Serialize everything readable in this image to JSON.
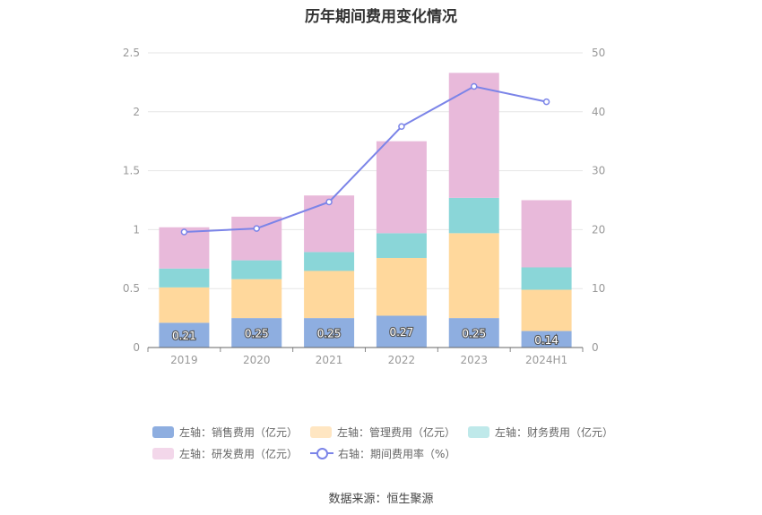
{
  "chart_data": {
    "type": "bar",
    "title": "历年期间费用变化情况",
    "categories": [
      "2019",
      "2020",
      "2021",
      "2022",
      "2023",
      "2024H1"
    ],
    "stacked": true,
    "series": [
      {
        "name": "左轴：销售费用（亿元）",
        "color": "#8eaee0",
        "values": [
          0.21,
          0.25,
          0.25,
          0.27,
          0.25,
          0.14
        ],
        "labels": [
          "0.21",
          "0.25",
          "0.25",
          "0.27",
          "0.25",
          "0.14"
        ]
      },
      {
        "name": "左轴：管理费用（亿元）",
        "color": "#ffd89c",
        "values": [
          0.3,
          0.33,
          0.4,
          0.49,
          0.72,
          0.35
        ]
      },
      {
        "name": "左轴：财务费用（亿元）",
        "color": "#8ad6d8",
        "values": [
          0.16,
          0.16,
          0.16,
          0.21,
          0.3,
          0.19
        ]
      },
      {
        "name": "左轴：研发费用（亿元）",
        "color": "#e8b9da",
        "values": [
          0.35,
          0.37,
          0.48,
          0.78,
          1.06,
          0.57
        ]
      }
    ],
    "line_series": {
      "name": "右轴：期间费用率（%）",
      "color": "#7b84e8",
      "values": [
        19.6,
        20.2,
        24.7,
        37.5,
        44.3,
        41.7
      ]
    },
    "ylim_left": [
      0,
      2.5
    ],
    "yticks_left": [
      "0",
      "0.5",
      "1",
      "1.5",
      "2",
      "2.5"
    ],
    "ylim_right": [
      0,
      50
    ],
    "yticks_right": [
      "0",
      "10",
      "20",
      "30",
      "40",
      "50"
    ],
    "grid": true,
    "legend_position": "bottom"
  },
  "source": "数据来源：恒生聚源"
}
